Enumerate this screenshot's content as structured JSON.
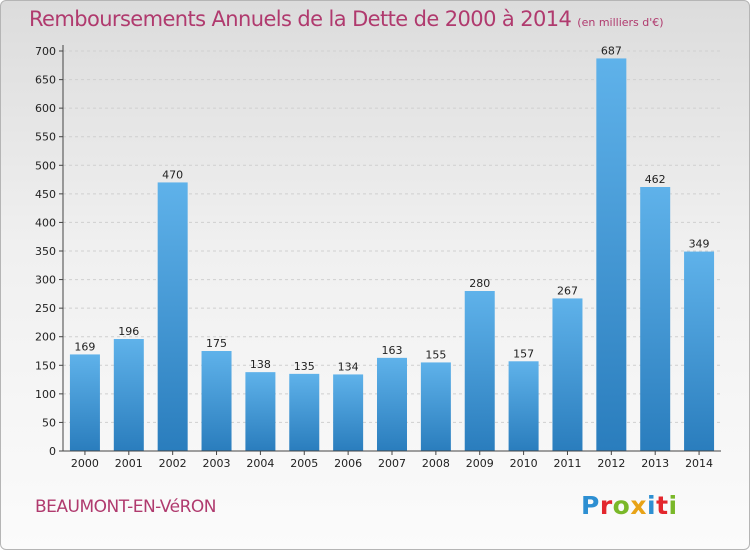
{
  "chart": {
    "title": "Remboursements Annuels de la Dette de 2000 à 2014",
    "unit": "(en milliers d'€)",
    "commune": "BEAUMONT-EN-VéRON",
    "logo": "Proxiti"
  },
  "colors": {
    "bar_top": "#5fb2ea",
    "bar_bottom": "#2a7dbd",
    "title": "#b03a6e",
    "grid": "#cfcfcf"
  },
  "chart_data": {
    "type": "bar",
    "title": "Remboursements Annuels de la Dette de 2000 à 2014",
    "subtitle": "(en milliers d'€)",
    "categories": [
      "2000",
      "2001",
      "2002",
      "2003",
      "2004",
      "2005",
      "2006",
      "2007",
      "2008",
      "2009",
      "2010",
      "2011",
      "2012",
      "2013",
      "2014"
    ],
    "values": [
      169,
      196,
      470,
      175,
      138,
      135,
      134,
      163,
      155,
      280,
      157,
      267,
      687,
      462,
      349
    ],
    "ylim": [
      0,
      700
    ],
    "yticks": [
      0,
      50,
      100,
      150,
      200,
      250,
      300,
      350,
      400,
      450,
      500,
      550,
      600,
      650,
      700
    ],
    "grid": true,
    "data_labels": true,
    "xlabel": "",
    "ylabel": ""
  }
}
